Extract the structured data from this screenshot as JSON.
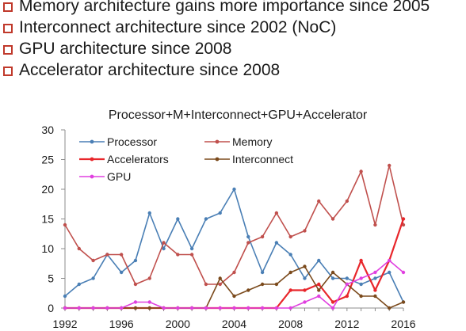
{
  "bullets": [
    "Memory architecture gains more importance since 2005",
    "Interconnect architecture since 2002 (NoC)",
    "GPU architecture since 2008",
    "Accelerator architecture since 2008"
  ],
  "chart_data": {
    "type": "line",
    "title": "Processor+M+Interconnect+GPU+Accelerator",
    "xlabel": "",
    "ylabel": "",
    "x": [
      1992,
      1993,
      1994,
      1995,
      1996,
      1997,
      1998,
      1999,
      2000,
      2001,
      2002,
      2003,
      2004,
      2005,
      2006,
      2007,
      2008,
      2009,
      2010,
      2011,
      2012,
      2013,
      2014,
      2015,
      2016
    ],
    "xlim": [
      1992,
      2016
    ],
    "ylim": [
      0,
      30
    ],
    "xticks": [
      "1992",
      "1996",
      "2000",
      "2004",
      "2008",
      "2012",
      "2016"
    ],
    "yticks": [
      "0",
      "5",
      "10",
      "15",
      "20",
      "25",
      "30"
    ],
    "grid": false,
    "legend": "top-left",
    "series": [
      {
        "name": "Processor",
        "color": "#4a7fb5",
        "values": [
          2,
          4,
          5,
          9,
          6,
          8,
          16,
          10,
          15,
          10,
          15,
          16,
          20,
          12,
          6,
          11,
          9,
          5,
          8,
          5,
          5,
          4,
          5,
          6,
          1
        ]
      },
      {
        "name": "Memory",
        "color": "#c0504d",
        "values": [
          14,
          10,
          8,
          9,
          9,
          4,
          5,
          11,
          9,
          9,
          4,
          4,
          6,
          11,
          12,
          16,
          12,
          13,
          18,
          15,
          18,
          23,
          14,
          24,
          14
        ]
      },
      {
        "name": "Accelerators",
        "color": "#e8262b",
        "values": [
          0,
          0,
          0,
          0,
          0,
          0,
          0,
          0,
          0,
          0,
          0,
          0,
          0,
          0,
          0,
          0,
          3,
          3,
          4,
          1,
          2,
          8,
          3,
          8,
          15
        ]
      },
      {
        "name": "Interconnect",
        "color": "#7b4a1c",
        "values": [
          0,
          0,
          0,
          0,
          0,
          0,
          0,
          0,
          0,
          0,
          0,
          5,
          2,
          3,
          4,
          4,
          6,
          7,
          3,
          6,
          4,
          2,
          2,
          0,
          1
        ]
      },
      {
        "name": "GPU",
        "color": "#e040e0",
        "values": [
          0,
          0,
          0,
          0,
          0,
          1,
          1,
          0,
          0,
          0,
          0,
          0,
          0,
          0,
          0,
          0,
          0,
          1,
          2,
          0,
          4,
          5,
          6,
          8,
          6
        ]
      }
    ]
  }
}
